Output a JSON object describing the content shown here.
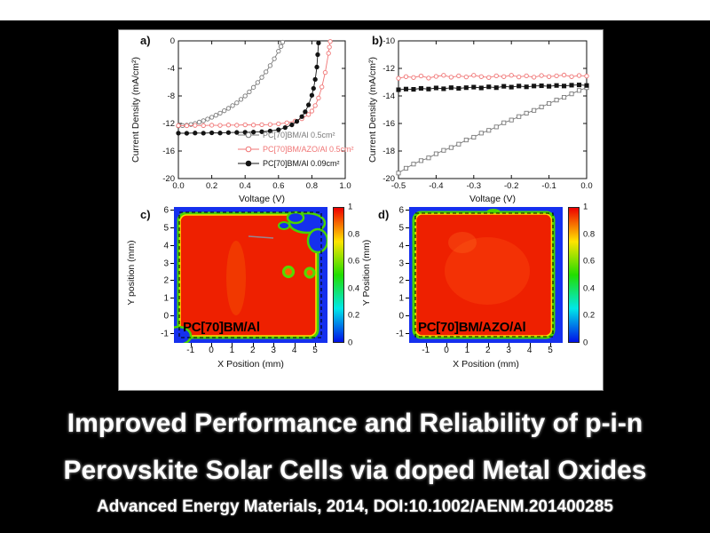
{
  "slide": {
    "title_line1": "Improved Performance and Reliability of p-i-n",
    "title_line2": "Perovskite Solar Cells via doped Metal Oxides",
    "citation": "Advanced Energy Materials, 2014, DOI:10.1002/AENM.201400285",
    "background_color": "#000000",
    "top_strip_color": "#ffffff",
    "figure_background": "#ffffff"
  },
  "chart_data": [
    {
      "id": "panel-a",
      "panel_label": "a)",
      "type": "scatter",
      "xlabel": "Voltage (V)",
      "ylabel": "Current Density (mA/cm²)",
      "xlim": [
        0.0,
        1.0
      ],
      "ylim": [
        -20,
        0
      ],
      "xticks": [
        0,
        0.2,
        0.4,
        0.6,
        0.8,
        1.0
      ],
      "xtick_labels": [
        "0.0",
        "0.2",
        "0.4",
        "0.6",
        "0.8",
        "1.0"
      ],
      "yticks": [
        0,
        -4,
        -8,
        -12,
        -16,
        -20
      ],
      "ytick_labels": [
        "0",
        "-4",
        "-8",
        "-12",
        "-16",
        "-20"
      ],
      "legend_position": "inside bottom-right",
      "series": [
        {
          "name": "PC[70]BM/Al 0.5cm²",
          "marker": "circle-open",
          "color": "#7a7a7a",
          "x": [
            0,
            0.025,
            0.05,
            0.075,
            0.1,
            0.125,
            0.15,
            0.175,
            0.2,
            0.225,
            0.25,
            0.275,
            0.3,
            0.325,
            0.35,
            0.375,
            0.4,
            0.425,
            0.45,
            0.475,
            0.5,
            0.525,
            0.55,
            0.575,
            0.6,
            0.615,
            0.625
          ],
          "y": [
            -12.35,
            -12.3,
            -12.25,
            -12.15,
            -12.0,
            -11.8,
            -11.6,
            -11.35,
            -11.1,
            -10.8,
            -10.5,
            -10.15,
            -9.8,
            -9.4,
            -9.0,
            -8.5,
            -8.0,
            -7.4,
            -6.75,
            -6.05,
            -5.3,
            -4.5,
            -3.6,
            -2.6,
            -1.5,
            -0.8,
            -0.2
          ]
        },
        {
          "name": "PC[70]BM/AZO/Al 0.5cm²",
          "marker": "circle-open",
          "color": "#f07575",
          "x": [
            0,
            0.05,
            0.1,
            0.15,
            0.2,
            0.25,
            0.3,
            0.35,
            0.4,
            0.45,
            0.5,
            0.55,
            0.6,
            0.65,
            0.7,
            0.74,
            0.78,
            0.8,
            0.82,
            0.84,
            0.86,
            0.88,
            0.9,
            0.905,
            0.91
          ],
          "y": [
            -12.3,
            -12.32,
            -12.28,
            -12.3,
            -12.25,
            -12.28,
            -12.22,
            -12.25,
            -12.2,
            -12.22,
            -12.18,
            -12.15,
            -12.05,
            -11.9,
            -11.65,
            -11.3,
            -10.7,
            -10.2,
            -9.4,
            -8.3,
            -6.7,
            -4.6,
            -1.8,
            -0.9,
            -0.1
          ]
        },
        {
          "name": "PC[70]BM/Al 0.09cm²",
          "marker": "circle-filled",
          "color": "#141414",
          "x": [
            0,
            0.05,
            0.1,
            0.15,
            0.2,
            0.25,
            0.3,
            0.35,
            0.4,
            0.45,
            0.5,
            0.55,
            0.6,
            0.64,
            0.68,
            0.71,
            0.74,
            0.76,
            0.78,
            0.8,
            0.81,
            0.82,
            0.83,
            0.835,
            0.84
          ],
          "y": [
            -13.4,
            -13.42,
            -13.38,
            -13.4,
            -13.35,
            -13.38,
            -13.32,
            -13.3,
            -13.28,
            -13.25,
            -13.2,
            -13.1,
            -12.9,
            -12.6,
            -12.2,
            -11.7,
            -11.0,
            -10.3,
            -9.3,
            -7.9,
            -6.9,
            -5.6,
            -3.8,
            -2.0,
            -0.3
          ]
        }
      ]
    },
    {
      "id": "panel-b",
      "panel_label": "b)",
      "type": "scatter",
      "xlabel": "Voltage (V)",
      "ylabel": "Current Density (mA/cm²)",
      "xlim": [
        -0.5,
        0.0
      ],
      "ylim": [
        -20,
        -10
      ],
      "xticks": [
        -0.5,
        -0.4,
        -0.3,
        -0.2,
        -0.1,
        0.0
      ],
      "xtick_labels": [
        "-0.5",
        "-0.4",
        "-0.3",
        "-0.2",
        "-0.1",
        "0.0"
      ],
      "yticks": [
        -10,
        -12,
        -14,
        -16,
        -18,
        -20
      ],
      "ytick_labels": [
        "-10",
        "-12",
        "-14",
        "-16",
        "-18",
        "-20"
      ],
      "series": [
        {
          "name": "gray-open-squares",
          "marker": "square-open",
          "color": "#7a7a7a",
          "x": [
            -0.5,
            -0.48,
            -0.46,
            -0.44,
            -0.42,
            -0.4,
            -0.38,
            -0.36,
            -0.34,
            -0.32,
            -0.3,
            -0.28,
            -0.26,
            -0.24,
            -0.22,
            -0.2,
            -0.18,
            -0.16,
            -0.14,
            -0.12,
            -0.1,
            -0.08,
            -0.06,
            -0.04,
            -0.02,
            0
          ],
          "y": [
            -19.6,
            -19.25,
            -18.95,
            -18.7,
            -18.5,
            -18.2,
            -17.95,
            -17.75,
            -17.5,
            -17.2,
            -17.0,
            -16.7,
            -16.5,
            -16.25,
            -15.95,
            -15.75,
            -15.5,
            -15.25,
            -15.05,
            -14.8,
            -14.55,
            -14.3,
            -14.1,
            -13.85,
            -13.6,
            -13.4
          ]
        },
        {
          "name": "black-filled-squares",
          "marker": "square-filled",
          "color": "#141414",
          "x": [
            -0.5,
            -0.48,
            -0.46,
            -0.44,
            -0.42,
            -0.4,
            -0.38,
            -0.36,
            -0.34,
            -0.32,
            -0.3,
            -0.28,
            -0.26,
            -0.24,
            -0.22,
            -0.2,
            -0.18,
            -0.16,
            -0.14,
            -0.12,
            -0.1,
            -0.08,
            -0.06,
            -0.04,
            -0.02,
            0
          ],
          "y": [
            -13.55,
            -13.5,
            -13.52,
            -13.45,
            -13.5,
            -13.42,
            -13.48,
            -13.4,
            -13.45,
            -13.4,
            -13.36,
            -13.42,
            -13.34,
            -13.4,
            -13.3,
            -13.36,
            -13.28,
            -13.34,
            -13.28,
            -13.26,
            -13.3,
            -13.24,
            -13.28,
            -13.22,
            -13.2,
            -13.24
          ]
        },
        {
          "name": "red-open-circles",
          "marker": "circle-open",
          "color": "#f07575",
          "x": [
            -0.5,
            -0.48,
            -0.46,
            -0.44,
            -0.42,
            -0.4,
            -0.38,
            -0.36,
            -0.34,
            -0.32,
            -0.3,
            -0.28,
            -0.26,
            -0.24,
            -0.22,
            -0.2,
            -0.18,
            -0.16,
            -0.14,
            -0.12,
            -0.1,
            -0.08,
            -0.06,
            -0.04,
            -0.02,
            0
          ],
          "y": [
            -12.72,
            -12.6,
            -12.66,
            -12.55,
            -12.7,
            -12.58,
            -12.5,
            -12.64,
            -12.54,
            -12.62,
            -12.5,
            -12.6,
            -12.66,
            -12.54,
            -12.6,
            -12.5,
            -12.62,
            -12.54,
            -12.64,
            -12.52,
            -12.6,
            -12.54,
            -12.48,
            -12.6,
            -12.52,
            -12.56
          ]
        }
      ]
    },
    {
      "id": "panel-c",
      "panel_label": "c)",
      "type": "heatmap",
      "xlabel": "X Position (mm)",
      "ylabel": "Y position (mm)",
      "xlim": [
        -1.8,
        5.6
      ],
      "ylim": [
        -1.5,
        6.2
      ],
      "xticks": [
        -1,
        0,
        1,
        2,
        3,
        4,
        5
      ],
      "xtick_labels": [
        "-1",
        "0",
        "1",
        "2",
        "3",
        "4",
        "5"
      ],
      "yticks": [
        -1,
        0,
        1,
        2,
        3,
        4,
        5,
        6
      ],
      "ytick_labels": [
        "-1",
        "0",
        "1",
        "2",
        "3",
        "4",
        "5",
        "6"
      ],
      "colorbar": {
        "min": 0,
        "max": 1,
        "ticks": [
          0,
          0.2,
          0.4,
          0.6,
          0.8,
          1
        ],
        "tick_labels": [
          "0",
          "0.2",
          "0.4",
          "0.6",
          "0.8",
          "1"
        ]
      },
      "label": "PC[70]BM/Al",
      "colormap": "jet",
      "summary": "Normalized photocurrent map: high signal (~1, red) over most of the dashed sample outline, degraded low-signal (blue, ~0-0.3) regions in the top-right corner, two ring-shaped defects near (3.7, 2.5) and (4.8, 2.4), and a small degraded notch at the bottom-left corner."
    },
    {
      "id": "panel-d",
      "panel_label": "d)",
      "type": "heatmap",
      "xlabel": "X Position (mm)",
      "ylabel": "Y Position (mm)",
      "xlim": [
        -1.8,
        5.6
      ],
      "ylim": [
        -1.5,
        6.2
      ],
      "xticks": [
        -1,
        0,
        1,
        2,
        3,
        4,
        5
      ],
      "xtick_labels": [
        "-1",
        "0",
        "1",
        "2",
        "3",
        "4",
        "5"
      ],
      "yticks": [
        -1,
        0,
        1,
        2,
        3,
        4,
        5,
        6
      ],
      "ytick_labels": [
        "-1",
        "0",
        "1",
        "2",
        "3",
        "4",
        "5",
        "6"
      ],
      "colorbar": {
        "min": 0,
        "max": 1,
        "ticks": [
          0,
          0.2,
          0.4,
          0.6,
          0.8,
          1
        ],
        "tick_labels": [
          "0",
          "0.2",
          "0.4",
          "0.6",
          "0.8",
          "1"
        ]
      },
      "label": "PC[70]BM/AZO/Al",
      "colormap": "jet",
      "summary": "Normalized photocurrent map: uniform high signal (~1, red) across the entire dashed sample outline with only a thin low-signal rim at the edges; no degraded interior regions."
    }
  ],
  "heatmap_colors": {
    "high": "#ee2000",
    "rim_green": "#4ad400",
    "rim_yellow": "#ffd400",
    "low_blue": "#1530ee"
  }
}
